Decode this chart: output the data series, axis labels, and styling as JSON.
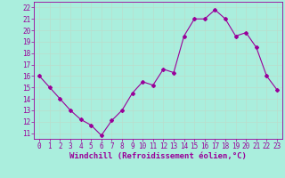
{
  "x": [
    0,
    1,
    2,
    3,
    4,
    5,
    6,
    7,
    8,
    9,
    10,
    11,
    12,
    13,
    14,
    15,
    16,
    17,
    18,
    19,
    20,
    21,
    22,
    23
  ],
  "y": [
    16,
    15,
    14,
    13,
    12.2,
    11.7,
    10.8,
    12.1,
    13,
    14.5,
    15.5,
    15.2,
    16.6,
    16.3,
    19.5,
    21,
    21,
    21.8,
    21,
    19.5,
    19.8,
    18.5,
    16,
    14.8
  ],
  "line_color": "#990099",
  "marker": "D",
  "markersize": 2,
  "linewidth": 0.8,
  "bg_color": "#aaeedd",
  "grid_color": "#bbddcc",
  "xlabel": "Windchill (Refroidissement éolien,°C)",
  "xlabel_color": "#990099",
  "yticks": [
    11,
    12,
    13,
    14,
    15,
    16,
    17,
    18,
    19,
    20,
    21,
    22
  ],
  "xticks": [
    0,
    1,
    2,
    3,
    4,
    5,
    6,
    7,
    8,
    9,
    10,
    11,
    12,
    13,
    14,
    15,
    16,
    17,
    18,
    19,
    20,
    21,
    22,
    23
  ],
  "ylim": [
    10.5,
    22.5
  ],
  "xlim": [
    -0.5,
    23.5
  ],
  "tick_fontsize": 5.5,
  "xlabel_fontsize": 6.5
}
